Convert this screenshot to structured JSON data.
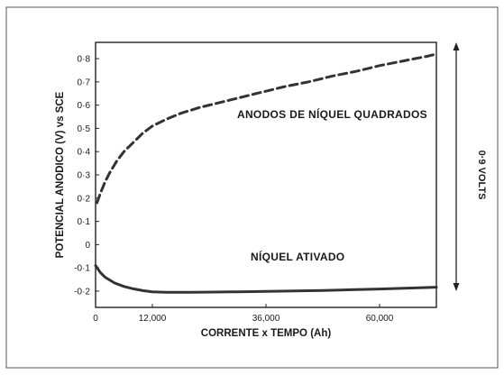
{
  "chart_data": {
    "type": "line",
    "xlabel": "CORRENTE x TEMPO (Ah)",
    "ylabel": "POTENCIAL ANODICO (V) vs SCE",
    "xlim": [
      0,
      72000
    ],
    "ylim": [
      -0.27,
      0.87
    ],
    "x_ticks": [
      0,
      12000,
      36000,
      60000
    ],
    "x_tick_labels": [
      "0",
      "12,000",
      "36,000",
      "60,000"
    ],
    "y_ticks": [
      0.8,
      0.7,
      0.6,
      0.5,
      0.4,
      0.3,
      0.2,
      0.1,
      0,
      -0.1,
      -0.2
    ],
    "y_tick_labels": [
      "0·8",
      "0·7",
      "0·6",
      "0·5",
      "0·4",
      "0·3",
      "0·2",
      "0·1",
      "0",
      "-0·1",
      "-0·2"
    ],
    "grid": false,
    "legend": "none",
    "series": [
      {
        "name": "ANODOS DE NÍQUEL QUADRADOS",
        "style": "dashed",
        "color": "#333333",
        "x": [
          300,
          1000,
          2000,
          3000,
          4500,
          6000,
          8000,
          10000,
          12000,
          15000,
          18000,
          22000,
          26000,
          30000,
          35000,
          40000,
          45000,
          50000,
          55000,
          60000,
          65000,
          70000,
          72000
        ],
        "y": [
          0.18,
          0.22,
          0.27,
          0.31,
          0.36,
          0.4,
          0.44,
          0.48,
          0.51,
          0.54,
          0.565,
          0.59,
          0.61,
          0.63,
          0.655,
          0.68,
          0.7,
          0.725,
          0.745,
          0.77,
          0.79,
          0.81,
          0.82
        ]
      },
      {
        "name": "NÍQUEL ATIVADO",
        "style": "solid",
        "color": "#333333",
        "x": [
          0,
          1000,
          2000,
          4000,
          6000,
          8000,
          10000,
          12000,
          15000,
          20000,
          25000,
          30000,
          36000,
          42000,
          48000,
          54000,
          60000,
          66000,
          72000
        ],
        "y": [
          -0.09,
          -0.12,
          -0.14,
          -0.165,
          -0.18,
          -0.19,
          -0.198,
          -0.203,
          -0.205,
          -0.205,
          -0.204,
          -0.203,
          -0.201,
          -0.199,
          -0.197,
          -0.194,
          -0.191,
          -0.187,
          -0.183
        ]
      }
    ],
    "annotations": {
      "span_label": "0·9 VOLTS",
      "span_from": -0.2,
      "span_to": 0.87
    }
  }
}
